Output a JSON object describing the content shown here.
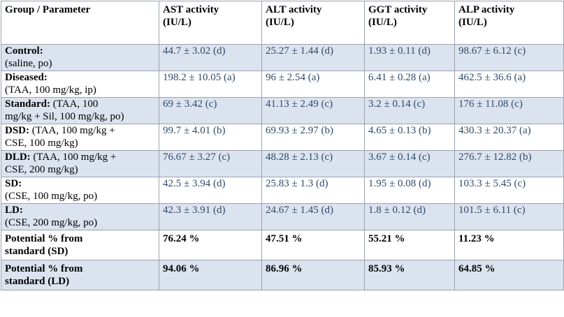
{
  "columns": [
    {
      "line1": "Group / Parameter",
      "line2": ""
    },
    {
      "line1": "AST activity",
      "line2": "(IU/L)"
    },
    {
      "line1": "ALT activity",
      "line2": "(IU/L)"
    },
    {
      "line1": "GGT activity",
      "line2": "(IU/L)"
    },
    {
      "line1": "ALP activity",
      "line2": "(IU/L)"
    }
  ],
  "rows": [
    {
      "name": "Control:",
      "line1_rest": "",
      "line2": "(saline, po)",
      "values": [
        "44.7 ± 3.02 (d)",
        "25.27 ± 1.44 (d)",
        "1.93 ± 0.11 (d)",
        "98.67 ± 6.12 (c)"
      ]
    },
    {
      "name": "Diseased:",
      "line1_rest": "",
      "line2": "(TAA, 100 mg/kg, ip)",
      "values": [
        "198.2 ± 10.05 (a)",
        "96 ± 2.54 (a)",
        "6.41 ± 0.28 (a)",
        "462.5 ± 36.6 (a)"
      ]
    },
    {
      "name": "Standard:",
      "line1_rest": " (TAA, 100",
      "line2": "mg/kg + Sil, 100 mg/kg, po)",
      "values": [
        "69 ± 3.42 (c)",
        "41.13 ± 2.49 (c)",
        "3.2 ± 0.14 (c)",
        "176 ± 11.08 (c)"
      ]
    },
    {
      "name": "DSD:",
      "line1_rest": " (TAA, 100 mg/kg +",
      "line2": "CSE, 100 mg/kg)",
      "values": [
        "99.7 ± 4.01 (b)",
        "69.93 ± 2.97 (b)",
        "4.65 ± 0.13 (b)",
        "430.3 ± 20.37 (a)"
      ]
    },
    {
      "name": "DLD:",
      "line1_rest": " (TAA, 100 mg/kg +",
      "line2": "CSE, 200 mg/kg)",
      "values": [
        "76.67 ± 3.27 (c)",
        "48.28 ± 2.13 (c)",
        "3.67 ± 0.14 (c)",
        "276.7 ± 12.82 (b)"
      ]
    },
    {
      "name": "SD:",
      "line1_rest": "",
      "line2": "(CSE, 100 mg/kg, po)",
      "values": [
        "42.5 ± 3.94 (d)",
        "25.83 ± 1.3 (d)",
        "1.95 ± 0.08 (d)",
        "103.3 ± 5.45 (c)"
      ]
    },
    {
      "name": "LD:",
      "line1_rest": "",
      "line2": "(CSE, 200 mg/kg, po)",
      "values": [
        "42.3 ± 3.91 (d)",
        "24.67 ± 1.45 (d)",
        "1.8 ± 0.12 (d)",
        "101.5 ± 6.11 (c)"
      ]
    }
  ],
  "potential": [
    {
      "line1": "Potential % from",
      "line2": "standard (SD)",
      "values": [
        "76.24 %",
        "47.51 %",
        "55.21 %",
        "11.23 %"
      ]
    },
    {
      "line1": "Potential % from",
      "line2": "standard (LD)",
      "values": [
        "94.06 %",
        "86.96 %",
        "85.93 %",
        "64.85 %"
      ]
    }
  ]
}
